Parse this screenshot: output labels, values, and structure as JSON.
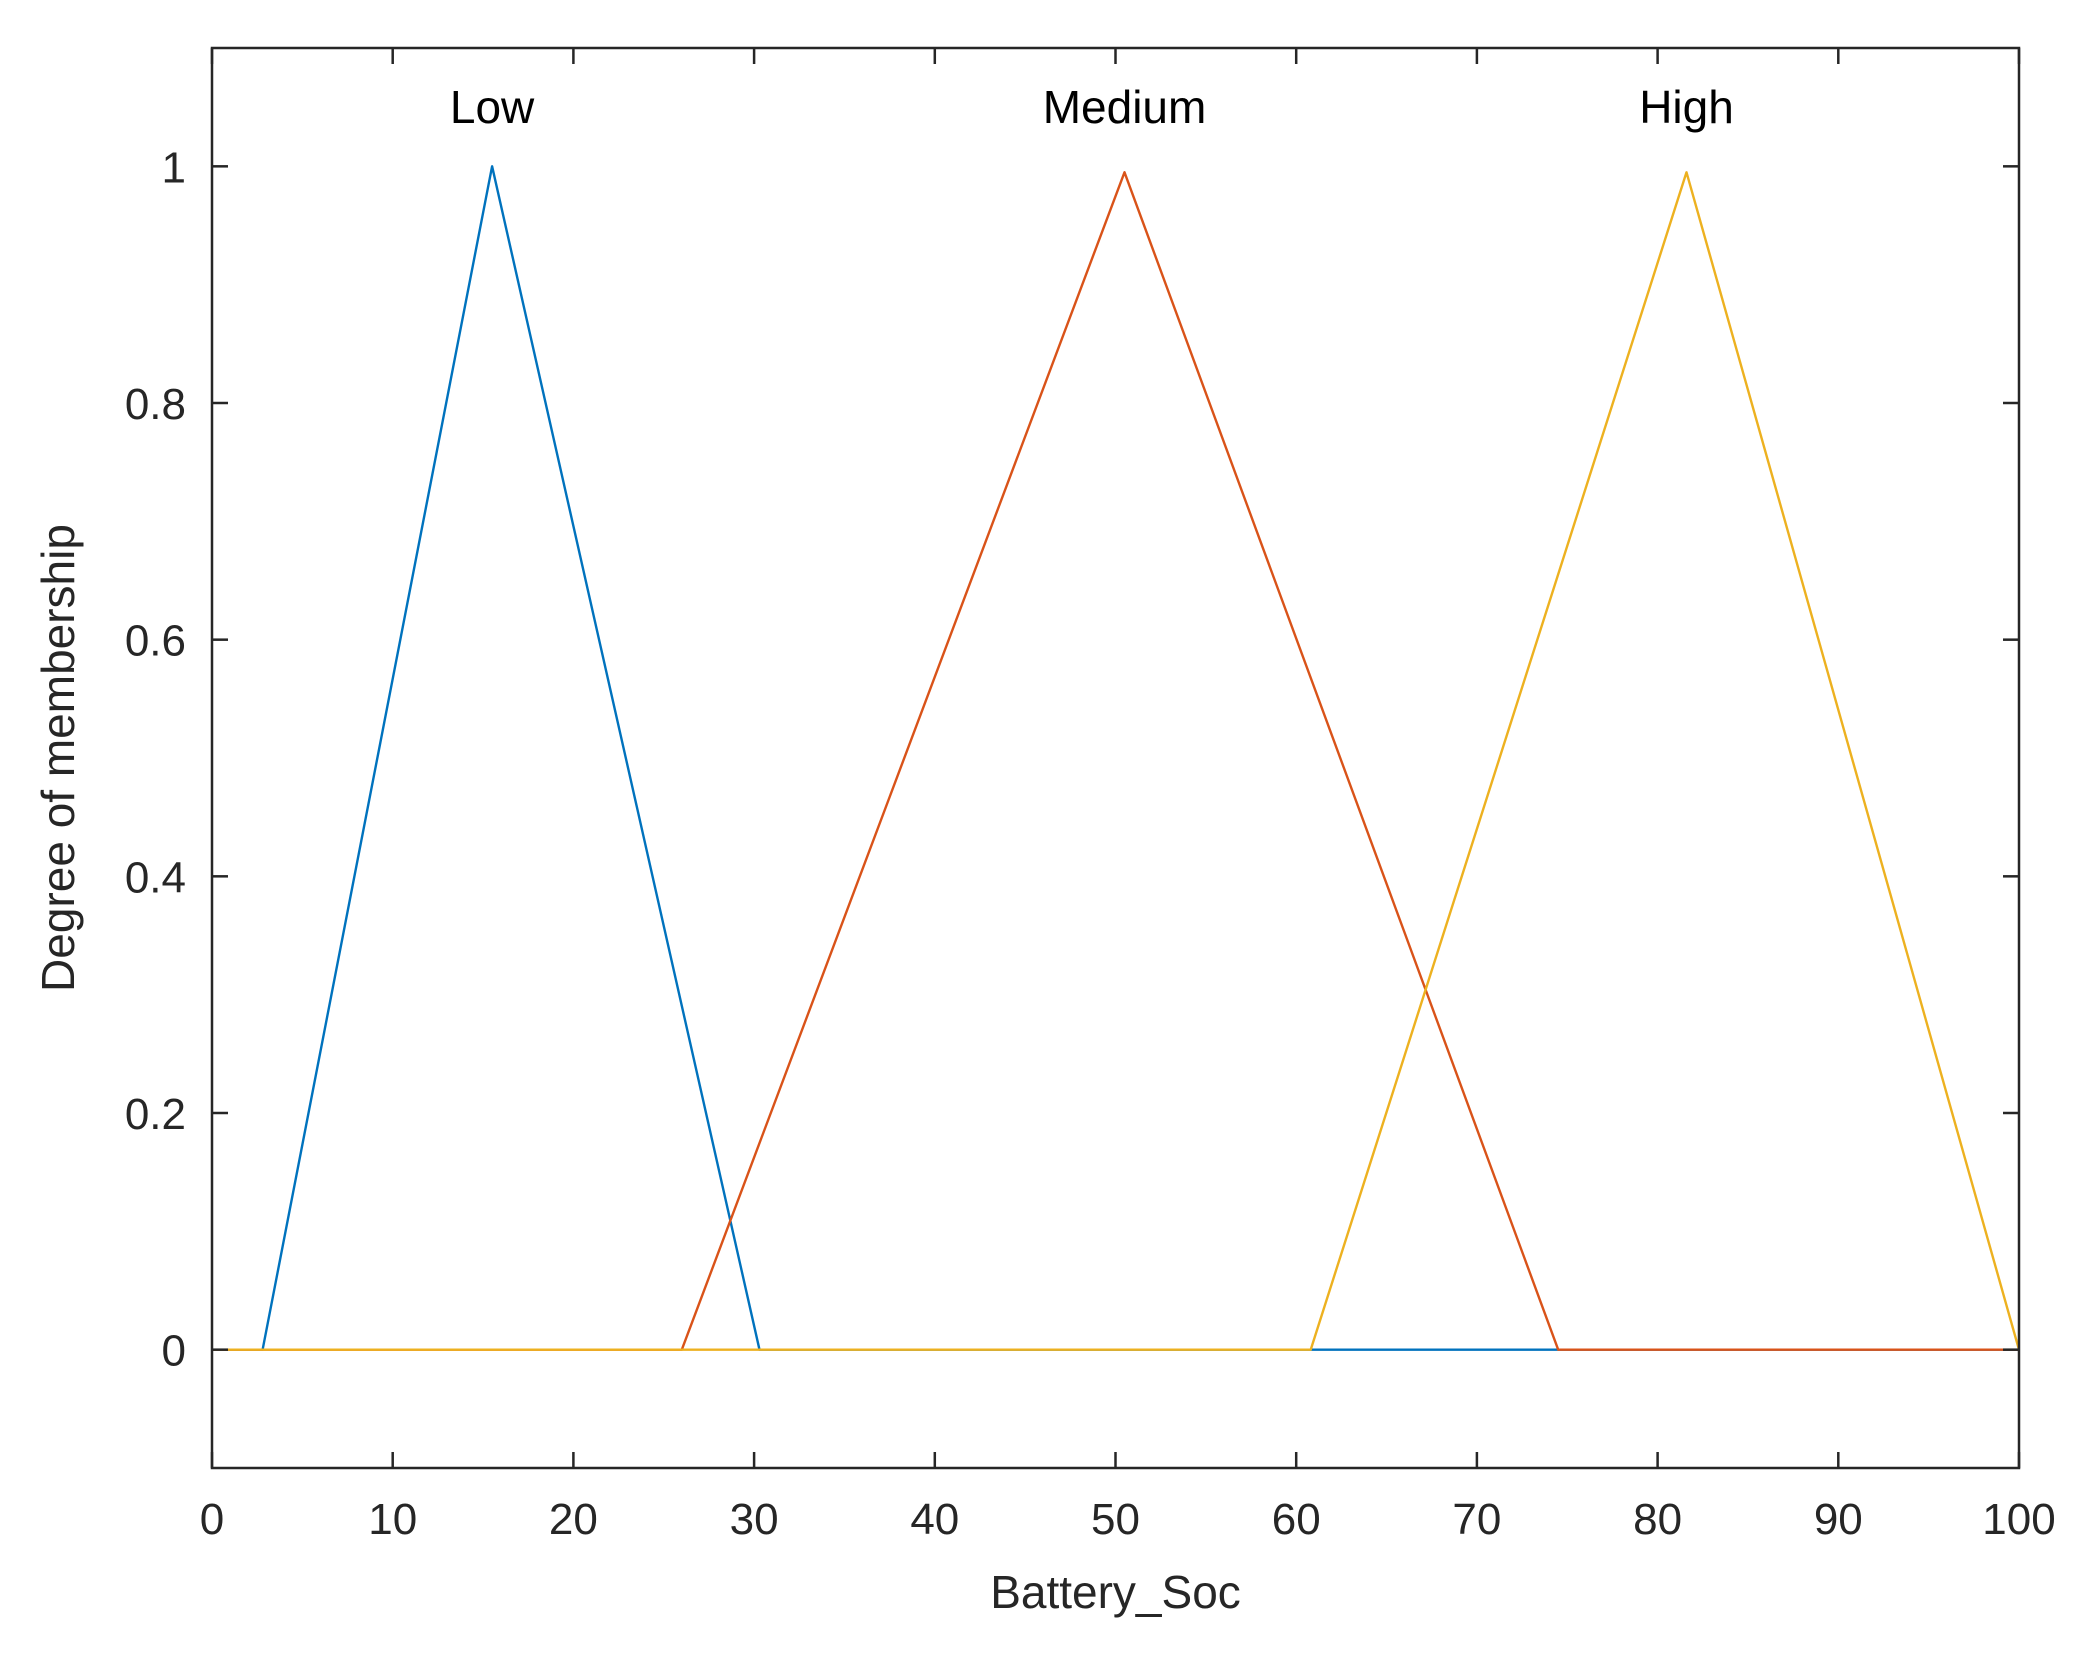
{
  "chart_data": {
    "type": "line",
    "title": "",
    "xlabel": "Battery_Soc",
    "ylabel": "Degree of membership",
    "xlim": [
      0,
      100
    ],
    "ylim": [
      -0.1,
      1.1
    ],
    "xticks": [
      0,
      10,
      20,
      30,
      40,
      50,
      60,
      70,
      80,
      90,
      100
    ],
    "yticks": [
      0,
      0.2,
      0.4,
      0.6,
      0.8,
      1
    ],
    "grid": false,
    "series": [
      {
        "name": "Low",
        "color": "#0072BD",
        "x": [
          0,
          2.8,
          15.5,
          30.3,
          100
        ],
        "y": [
          0,
          0,
          1,
          0,
          0
        ]
      },
      {
        "name": "Medium",
        "color": "#D95319",
        "x": [
          0,
          26,
          50.5,
          74.5,
          100
        ],
        "y": [
          0,
          0,
          0.995,
          0,
          0
        ]
      },
      {
        "name": "High",
        "color": "#EDB120",
        "x": [
          0,
          60.8,
          81.6,
          100
        ],
        "y": [
          0,
          0,
          0.995,
          0
        ]
      }
    ],
    "annotations": [
      {
        "text": "Low",
        "x": 15.5,
        "y": 1.05
      },
      {
        "text": "Medium",
        "x": 50.5,
        "y": 1.05
      },
      {
        "text": "High",
        "x": 81.6,
        "y": 1.05
      }
    ]
  }
}
